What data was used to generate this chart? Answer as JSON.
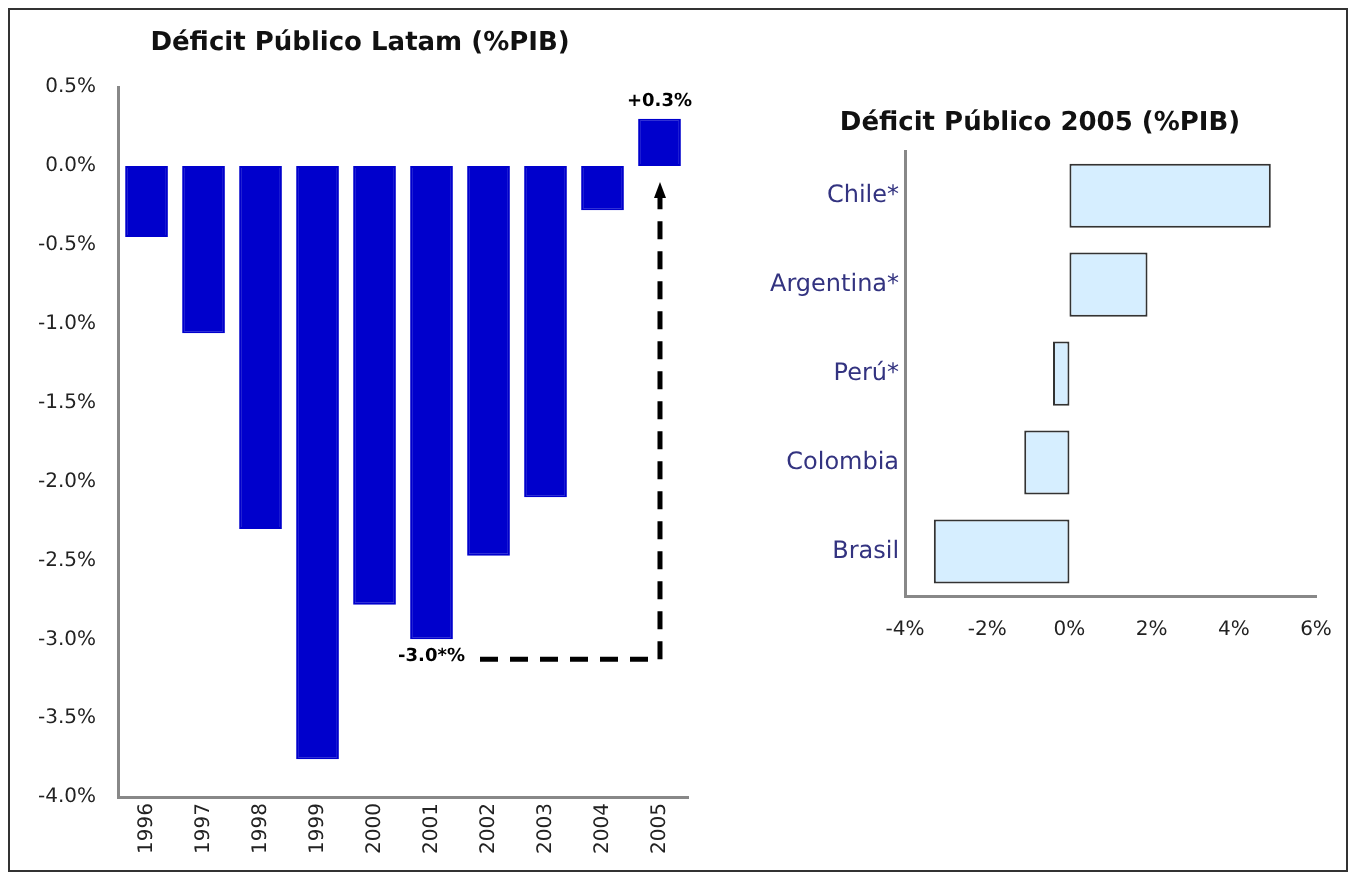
{
  "chart_data": [
    {
      "type": "bar",
      "title": "Déficit Público Latam (%PIB)",
      "categories": [
        "1996",
        "1997",
        "1998",
        "1999",
        "2000",
        "2001",
        "2002",
        "2003",
        "2004",
        "2005"
      ],
      "values": [
        -0.45,
        -1.06,
        -2.3,
        -3.76,
        -2.78,
        -3.0,
        -2.47,
        -2.1,
        -0.28,
        0.3
      ],
      "value_labels": [
        null,
        null,
        null,
        null,
        null,
        "-3.0*%",
        null,
        null,
        null,
        "+0.3%"
      ],
      "color": "#0000cc",
      "ylim": [
        -4,
        0.5
      ],
      "yticks": [
        {
          "value": 0.5,
          "label": "0.5%"
        },
        {
          "value": 0,
          "label": "0.0%"
        },
        {
          "value": -0.5,
          "label": "-0.5%"
        },
        {
          "value": -1,
          "label": "-1.0%"
        },
        {
          "value": -1.5,
          "label": "-1.5%"
        },
        {
          "value": -2,
          "label": "-2.0%"
        },
        {
          "value": -2.5,
          "label": "-2.5%"
        },
        {
          "value": -3,
          "label": "-3.0%"
        },
        {
          "value": -3.5,
          "label": "-3.5%"
        },
        {
          "value": -4,
          "label": "-4.0%"
        }
      ],
      "grid": false,
      "legend": false
    },
    {
      "type": "bar",
      "title": "Déficit Público 2005 (%PIB)",
      "orientation": "horizontal",
      "categories": [
        "Chile*",
        "Argentina*",
        "Perú*",
        "Colombia",
        "Brasil"
      ],
      "values": [
        4.9,
        1.9,
        -0.4,
        -1.1,
        -3.3
      ],
      "color": "#d6eeff",
      "xlim": [
        -4,
        6
      ],
      "xticks": [
        {
          "value": -4,
          "label": "-4%"
        },
        {
          "value": -2,
          "label": "-2%"
        },
        {
          "value": 0,
          "label": "0%"
        },
        {
          "value": 2,
          "label": "2%"
        },
        {
          "value": 4,
          "label": "4%"
        },
        {
          "value": 6,
          "label": "6%"
        }
      ],
      "grid": false,
      "legend": false
    }
  ]
}
